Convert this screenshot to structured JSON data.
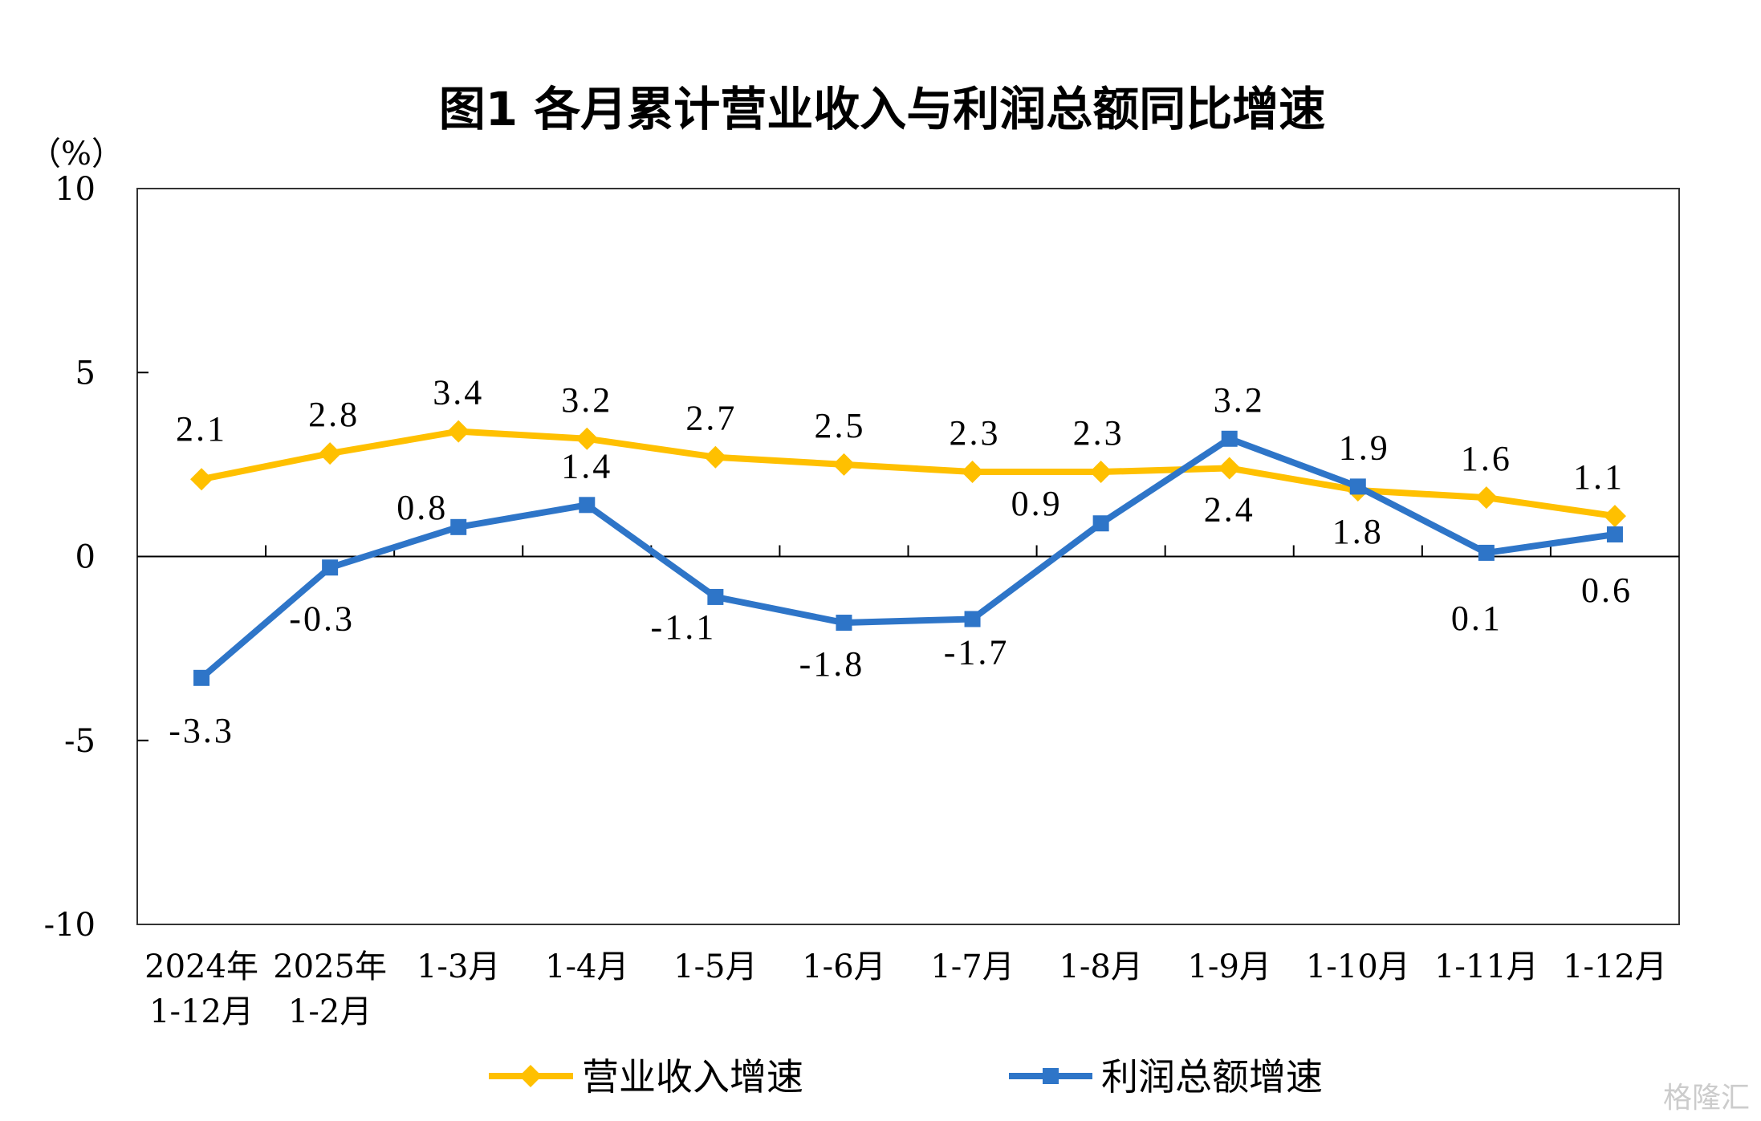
{
  "chart_data": {
    "type": "line",
    "title": "图1  各月累计营业收入与利润总额同比增速",
    "ylabel": "（%）",
    "ylim": [
      -10,
      10
    ],
    "yticks": [
      "10",
      "5",
      "0",
      "-5",
      "-10"
    ],
    "ytick_values": [
      10,
      5,
      0,
      -5,
      -10
    ],
    "categories": [
      [
        "2024年",
        "1-12月"
      ],
      [
        "2025年",
        "1-2月"
      ],
      [
        "1-3月"
      ],
      [
        "1-4月"
      ],
      [
        "1-5月"
      ],
      [
        "1-6月"
      ],
      [
        "1-7月"
      ],
      [
        "1-8月"
      ],
      [
        "1-9月"
      ],
      [
        "1-10月"
      ],
      [
        "1-11月"
      ],
      [
        "1-12月"
      ]
    ],
    "legend_position": "bottom",
    "grid": false,
    "series": [
      {
        "name": "营业收入增速",
        "color": "#FFC000",
        "marker": "diamond",
        "values": [
          2.1,
          2.8,
          3.4,
          3.2,
          2.7,
          2.5,
          2.3,
          2.3,
          2.4,
          1.8,
          1.6,
          1.1
        ]
      },
      {
        "name": "利润总额增速",
        "color": "#2E75C8",
        "marker": "square",
        "values": [
          -3.3,
          -0.3,
          0.8,
          1.4,
          -1.1,
          -1.8,
          -1.7,
          0.9,
          3.2,
          1.9,
          0.1,
          0.6
        ]
      }
    ]
  },
  "watermark": "格隆汇"
}
